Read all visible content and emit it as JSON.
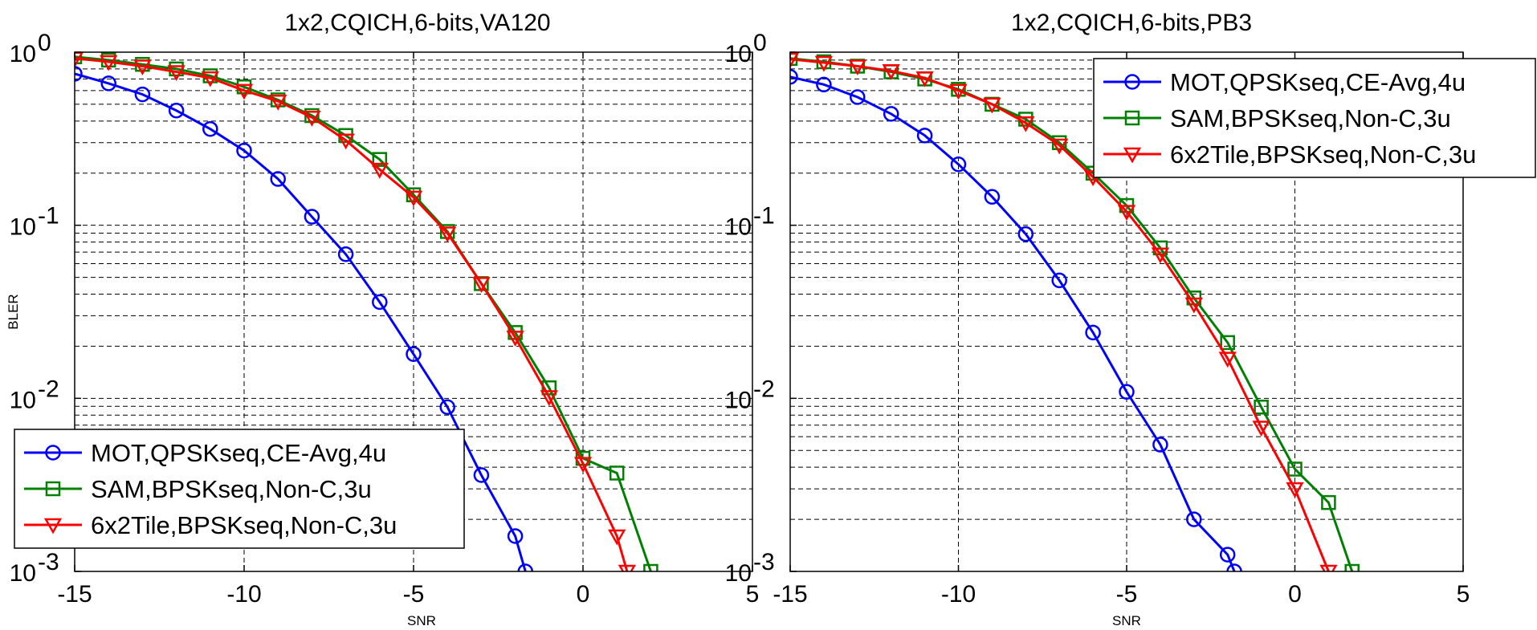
{
  "chart_data": [
    {
      "type": "line",
      "title": "1x2,CQICH,6-bits,VA120",
      "xlabel": "SNR",
      "ylabel": "BLER",
      "xlim": [
        -15,
        5
      ],
      "ylim": [
        0.001,
        1
      ],
      "yscale": "log",
      "grid": true,
      "legend_position": "bottom-left",
      "x_ticks": [
        "-15",
        "-10",
        "-5",
        "0",
        "5"
      ],
      "y_ticks": [
        {
          "base": "10",
          "exp": "0"
        },
        {
          "base": "10",
          "exp": "-1"
        },
        {
          "base": "10",
          "exp": "-2"
        },
        {
          "base": "10",
          "exp": "-3"
        }
      ],
      "series": [
        {
          "name": "MOT,QPSKseq,CE-Avg,4u",
          "color": "#0000ff",
          "marker": "circle",
          "x": [
            -15,
            -14,
            -13,
            -12,
            -11,
            -10,
            -9,
            -8,
            -7,
            -6,
            -5,
            -4,
            -3,
            -2,
            -1.7
          ],
          "y": [
            0.75,
            0.66,
            0.57,
            0.46,
            0.36,
            0.27,
            0.185,
            0.112,
            0.068,
            0.036,
            0.018,
            0.0089,
            0.0036,
            0.0016,
            0.001
          ]
        },
        {
          "name": "SAM,BPSKseq,Non-C,3u",
          "color": "#008000",
          "marker": "square",
          "x": [
            -15,
            -14,
            -13,
            -12,
            -11,
            -10,
            -9,
            -8,
            -7,
            -6,
            -5,
            -4,
            -3,
            -2,
            -1,
            0,
            1,
            2
          ],
          "y": [
            0.94,
            0.9,
            0.85,
            0.8,
            0.73,
            0.63,
            0.53,
            0.43,
            0.33,
            0.24,
            0.15,
            0.092,
            0.046,
            0.024,
            0.0115,
            0.0045,
            0.0037,
            0.001
          ]
        },
        {
          "name": "6x2Tile,BPSKseq,Non-C,3u",
          "color": "#ff0000",
          "marker": "triangle-down",
          "x": [
            -15,
            -14,
            -13,
            -12,
            -11,
            -10,
            -9,
            -8,
            -7,
            -6,
            -5,
            -4,
            -3,
            -2,
            -1,
            0,
            1,
            1.3
          ],
          "y": [
            0.92,
            0.88,
            0.83,
            0.77,
            0.71,
            0.6,
            0.52,
            0.42,
            0.31,
            0.21,
            0.145,
            0.09,
            0.046,
            0.0225,
            0.0102,
            0.0042,
            0.0016,
            0.001
          ]
        }
      ]
    },
    {
      "type": "line",
      "title": "1x2,CQICH,6-bits,PB3",
      "xlabel": "SNR",
      "ylabel": "",
      "xlim": [
        -15,
        5
      ],
      "ylim": [
        0.001,
        1
      ],
      "yscale": "log",
      "grid": true,
      "legend_position": "top-right",
      "x_ticks": [
        "-15",
        "-10",
        "-5",
        "0",
        "5"
      ],
      "y_ticks": [
        {
          "base": "10",
          "exp": "0"
        },
        {
          "base": "10",
          "exp": "-1"
        },
        {
          "base": "10",
          "exp": "-2"
        },
        {
          "base": "10",
          "exp": "-3"
        }
      ],
      "series": [
        {
          "name": "MOT,QPSKseq,CE-Avg,4u",
          "color": "#0000ff",
          "marker": "circle",
          "x": [
            -15,
            -14,
            -13,
            -12,
            -11,
            -10,
            -9,
            -8,
            -7,
            -6,
            -5,
            -4,
            -3,
            -2,
            -1.8
          ],
          "y": [
            0.72,
            0.65,
            0.55,
            0.44,
            0.33,
            0.225,
            0.146,
            0.089,
            0.048,
            0.024,
            0.0109,
            0.0054,
            0.002,
            0.00125,
            0.001
          ]
        },
        {
          "name": "SAM,BPSKseq,Non-C,3u",
          "color": "#008000",
          "marker": "square",
          "x": [
            -15,
            -14,
            -13,
            -12,
            -11,
            -10,
            -9,
            -8,
            -7,
            -6,
            -5,
            -4,
            -3,
            -2,
            -1,
            0,
            1,
            1.7
          ],
          "y": [
            0.92,
            0.88,
            0.83,
            0.77,
            0.7,
            0.61,
            0.5,
            0.41,
            0.3,
            0.2,
            0.13,
            0.074,
            0.038,
            0.021,
            0.0089,
            0.0039,
            0.0025,
            0.001
          ]
        },
        {
          "name": "6x2Tile,BPSKseq,Non-C,3u",
          "color": "#ff0000",
          "marker": "triangle-down",
          "x": [
            -15,
            -14,
            -13,
            -12,
            -11,
            -10,
            -9,
            -8,
            -7,
            -6,
            -5,
            -4,
            -3,
            -2,
            -1,
            0,
            1
          ],
          "y": [
            0.91,
            0.87,
            0.83,
            0.78,
            0.71,
            0.6,
            0.5,
            0.39,
            0.29,
            0.19,
            0.12,
            0.068,
            0.035,
            0.017,
            0.0068,
            0.003,
            0.001
          ]
        }
      ]
    }
  ]
}
